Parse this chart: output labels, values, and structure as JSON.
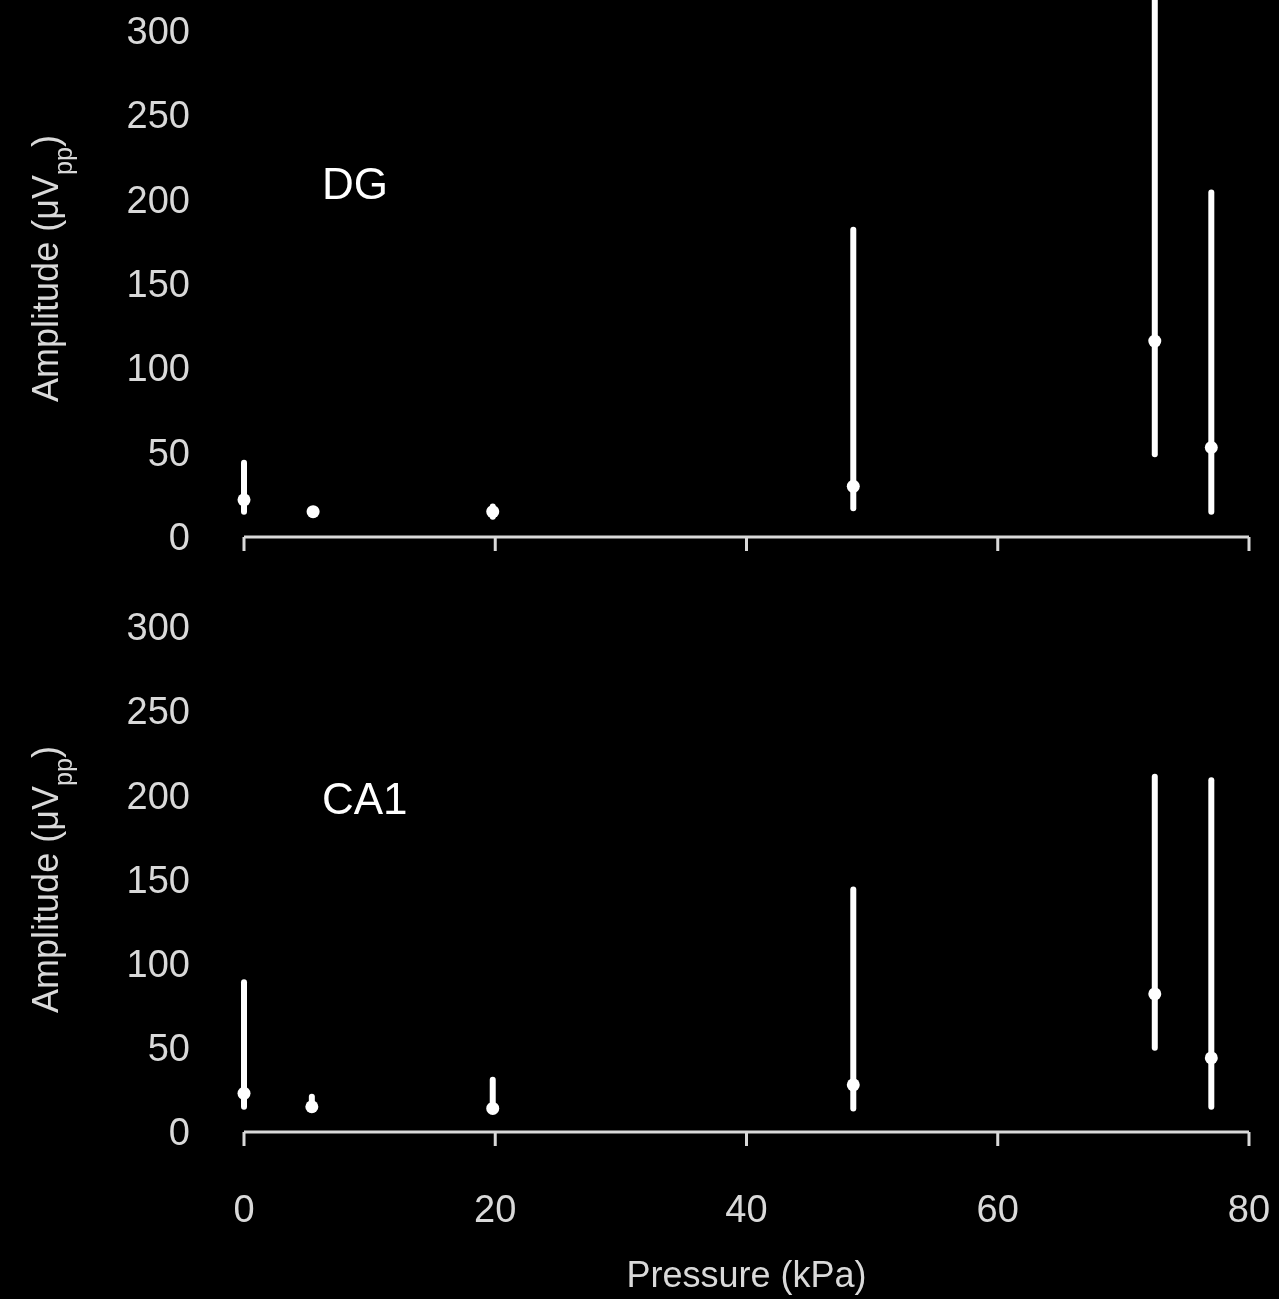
{
  "chart_data": [
    {
      "type": "scatter",
      "ylabel": "Amplitude  (μV$_{pp}$)",
      "annotations": [
        "DG"
      ],
      "xlim": [
        0,
        80
      ],
      "xticks": [
        0,
        20,
        40,
        60,
        80
      ],
      "ylim": [
        0,
        318
      ],
      "yticks": [
        0,
        50,
        100,
        150,
        200,
        250,
        300
      ],
      "tick_labels": "y",
      "marker": "circle",
      "series": [
        {
          "color": "#ffffff",
          "x": [
            0,
            5.5,
            19.8,
            48.5,
            72.5,
            77
          ],
          "values": [
            22,
            15,
            15,
            30,
            116,
            53
          ],
          "errors": [
            [
              15,
              44
            ],
            null,
            [
              12,
              18
            ],
            [
              17,
              182
            ],
            [
              49,
              318
            ],
            [
              15,
              204
            ]
          ]
        }
      ]
    },
    {
      "type": "scatter",
      "xlabel": "Pressure  (kPa)",
      "ylabel": "Amplitude  (μV$_{pp}$)",
      "annotations": [
        "CA1"
      ],
      "xlim": [
        0,
        80
      ],
      "xticks": [
        0,
        20,
        40,
        60,
        80
      ],
      "ylim": [
        0,
        300
      ],
      "yticks": [
        0,
        50,
        100,
        150,
        200,
        250,
        300
      ],
      "marker": "circle",
      "series": [
        {
          "color": "#ffffff",
          "x": [
            0,
            5.4,
            19.8,
            48.5,
            72.5,
            77
          ],
          "values": [
            23,
            15,
            14,
            28,
            82,
            44
          ],
          "errors": [
            [
              15,
              89
            ],
            [
              15,
              21
            ],
            [
              14,
              31
            ],
            [
              14,
              144
            ],
            [
              50,
              211
            ],
            [
              15,
              209
            ]
          ]
        }
      ]
    }
  ]
}
